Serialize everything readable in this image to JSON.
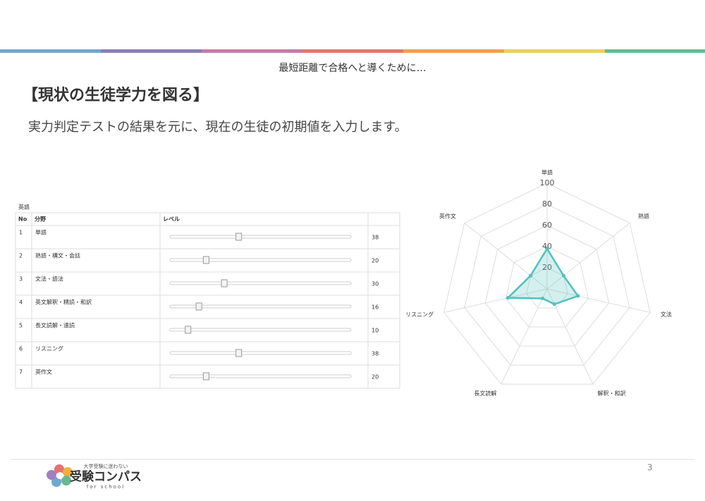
{
  "header": {
    "subtitle": "最短距離で合格へと導くために…",
    "title": "【現状の生徒学力を図る】",
    "lead": "実力判定テストの結果を元に、現在の生徒の初期値を入力します。"
  },
  "table": {
    "caption": "英語",
    "columns": [
      "No",
      "分野",
      "レベル"
    ],
    "slider_range": [
      0,
      100
    ],
    "rows": [
      {
        "no": "1",
        "field": "単語",
        "value": 38
      },
      {
        "no": "2",
        "field": "熟語・構文・会話",
        "value": 20
      },
      {
        "no": "3",
        "field": "文法・語法",
        "value": 30
      },
      {
        "no": "4",
        "field": "英文解釈・精読・和訳",
        "value": 16
      },
      {
        "no": "5",
        "field": "長文読解・速読",
        "value": 10
      },
      {
        "no": "6",
        "field": "リスニング",
        "value": 38
      },
      {
        "no": "7",
        "field": "英作文",
        "value": 20
      }
    ]
  },
  "chart_data": {
    "type": "radar",
    "categories": [
      "単語",
      "熟語",
      "文法",
      "解釈・和訳",
      "長文読解",
      "リスニング",
      "英作文"
    ],
    "values": [
      38,
      20,
      30,
      16,
      10,
      38,
      20
    ],
    "color": "#4fc1bd",
    "ylim": [
      0,
      100
    ],
    "yticks": [
      20,
      40,
      60,
      80,
      100
    ],
    "grid": true
  },
  "footer": {
    "page": "3",
    "logo_tagline": "大学受験に迷わない",
    "logo_name": "受験コンパス",
    "logo_sub": "for school"
  }
}
